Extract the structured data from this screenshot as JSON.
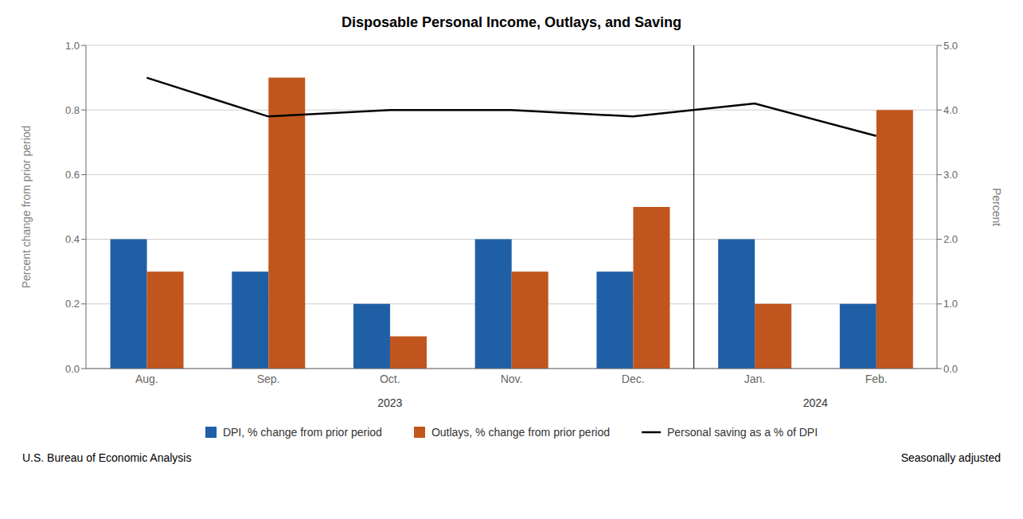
{
  "chart_data": {
    "type": "bar",
    "title": "Disposable Personal Income, Outlays, and Saving",
    "categories": [
      "Aug.",
      "Sep.",
      "Oct.",
      "Nov.",
      "Dec.",
      "Jan.",
      "Feb."
    ],
    "series": [
      {
        "name": "DPI, % change from prior period",
        "type": "bar",
        "color": "#1F5FA6",
        "values": [
          0.4,
          0.3,
          0.2,
          0.4,
          0.3,
          0.4,
          0.2
        ]
      },
      {
        "name": "Outlays, % change from prior period",
        "type": "bar",
        "color": "#C0561D",
        "values": [
          0.3,
          0.9,
          0.1,
          0.3,
          0.5,
          0.2,
          0.8
        ]
      },
      {
        "name": "Personal saving as a % of DPI",
        "type": "line",
        "color": "#000000",
        "axis": "y2",
        "values": [
          4.5,
          3.9,
          4.0,
          4.0,
          3.9,
          4.1,
          3.6
        ]
      }
    ],
    "ylabel": "Percent change from prior period",
    "y2label": "Percent",
    "ylim": [
      0.0,
      1.0
    ],
    "yticks": [
      {
        "value": 0.0,
        "label": "0.0"
      },
      0.2,
      0.4,
      0.6,
      0.8,
      {
        "value": 1.0,
        "label": "1.0"
      }
    ],
    "y2lim": [
      0.0,
      5.0
    ],
    "y2ticks": [
      {
        "value": 0.0,
        "label": "0.0"
      },
      {
        "value": 1.0,
        "label": "1.0"
      },
      {
        "value": 2.0,
        "label": "2.0"
      },
      {
        "value": 3.0,
        "label": "3.0"
      },
      {
        "value": 4.0,
        "label": "4.0"
      },
      {
        "value": 5.0,
        "label": "5.0"
      }
    ],
    "grid": true,
    "legend": "bottom",
    "annotations": [
      {
        "text": "2023",
        "categories": [
          "Aug.",
          "Sep.",
          "Oct.",
          "Nov.",
          "Dec."
        ]
      },
      {
        "text": "2024",
        "categories": [
          "Jan.",
          "Feb."
        ]
      }
    ],
    "footnotes": [
      "U.S. Bureau of Economic Analysis",
      "Seasonally adjusted"
    ]
  }
}
